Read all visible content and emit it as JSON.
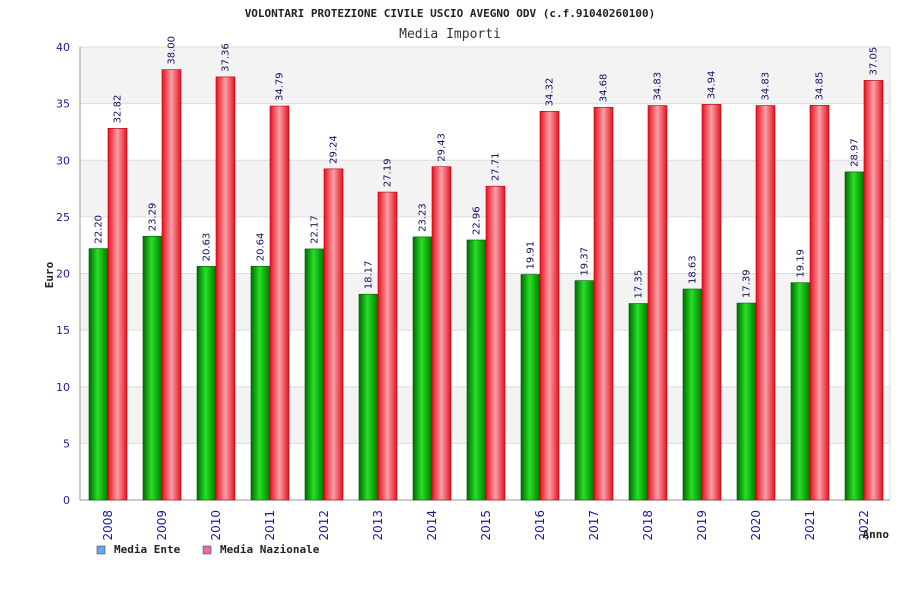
{
  "chart_data": {
    "type": "bar",
    "title": "VOLONTARI PROTEZIONE CIVILE USCIO AVEGNO ODV (c.f.91040260100)",
    "subtitle": "Media Importi",
    "xlabel": "Anno",
    "ylabel": "Euro",
    "ylim": [
      0,
      40
    ],
    "yticks": [
      "0",
      "5",
      "10",
      "15",
      "20",
      "25",
      "30",
      "35",
      "40"
    ],
    "grid": true,
    "legend_position": "bottom-left",
    "categories": [
      "2008",
      "2009",
      "2010",
      "2011",
      "2012",
      "2013",
      "2014",
      "2015",
      "2016",
      "2017",
      "2018",
      "2019",
      "2020",
      "2021",
      "2022"
    ],
    "series": [
      {
        "name": "Media Ente",
        "color": "#00b000",
        "legend_color": "#6aa8ec",
        "values": [
          22.2,
          23.29,
          20.63,
          20.64,
          22.17,
          18.17,
          23.23,
          22.96,
          19.91,
          19.37,
          17.35,
          18.63,
          17.39,
          19.19,
          28.97
        ],
        "labels": [
          "22.20",
          "23.29",
          "20.63",
          "20.64",
          "22.17",
          "18.17",
          "23.23",
          "22.96",
          "19.91",
          "19.37",
          "17.35",
          "18.63",
          "17.39",
          "19.19",
          "28.97"
        ]
      },
      {
        "name": "Media Nazionale",
        "color": "#ee1c2c",
        "legend_color": "#e070a8",
        "values": [
          32.82,
          38.0,
          37.36,
          34.79,
          29.24,
          27.19,
          29.43,
          27.71,
          34.32,
          34.68,
          34.83,
          34.94,
          34.83,
          34.85,
          37.05
        ],
        "labels": [
          "32.82",
          "38.00",
          "37.36",
          "34.79",
          "29.24",
          "27.19",
          "29.43",
          "27.71",
          "34.32",
          "34.68",
          "34.83",
          "34.94",
          "34.83",
          "34.85",
          "37.05"
        ]
      }
    ]
  }
}
